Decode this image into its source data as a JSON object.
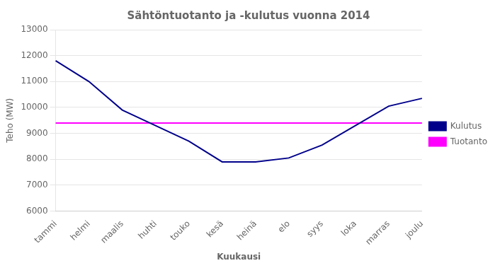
{
  "chart_data": {
    "type": "line",
    "title": "Sähtöntuotanto ja -kulutus vuonna 2014",
    "x_label": "Kuukausi",
    "y_label": "Teho (MW)",
    "categories": [
      "tammi",
      "helmi",
      "maalis",
      "huhti",
      "touko",
      "kesä",
      "heinä",
      "elo",
      "syys",
      "loka",
      "marras",
      "joulu"
    ],
    "series": [
      {
        "name": "Kulutus",
        "color": "#00008B",
        "values": [
          11800,
          11000,
          9900,
          9300,
          8700,
          7900,
          7900,
          8050,
          8550,
          9300,
          10050,
          10350
        ]
      },
      {
        "name": "Tuotanto",
        "color": "#FF00FF",
        "values": [
          9400,
          9400,
          9400,
          9400,
          9400,
          9400,
          9400,
          9400,
          9400,
          9400,
          9400,
          9400
        ]
      }
    ],
    "ylim": [
      6000,
      13000
    ],
    "yticks": [
      6000,
      7000,
      8000,
      9000,
      10000,
      11000,
      12000,
      13000
    ],
    "grid": true,
    "legend": "right"
  }
}
